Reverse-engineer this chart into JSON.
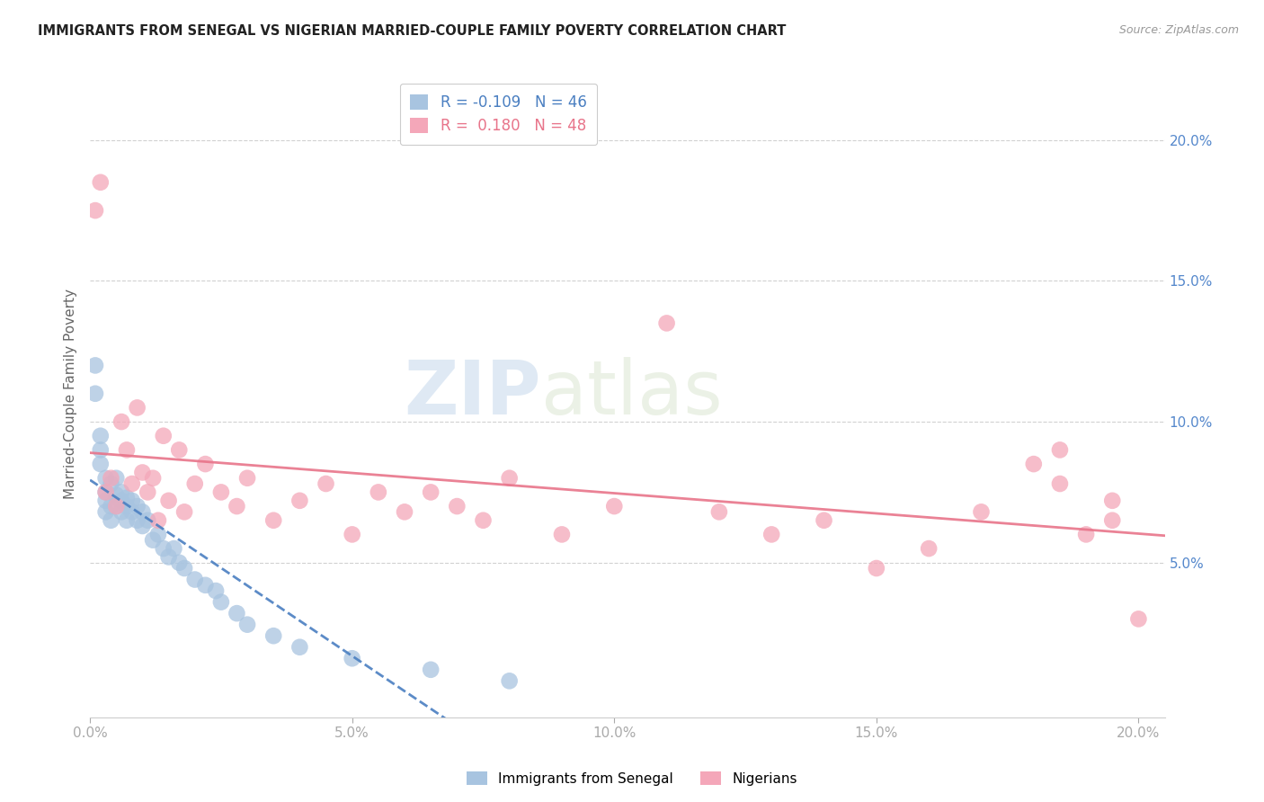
{
  "title": "IMMIGRANTS FROM SENEGAL VS NIGERIAN MARRIED-COUPLE FAMILY POVERTY CORRELATION CHART",
  "source": "Source: ZipAtlas.com",
  "ylabel": "Married-Couple Family Poverty",
  "xlim": [
    0.0,
    0.205
  ],
  "ylim": [
    -0.005,
    0.225
  ],
  "xticks": [
    0.0,
    0.05,
    0.1,
    0.15,
    0.2
  ],
  "yticks": [
    0.05,
    0.1,
    0.15,
    0.2
  ],
  "r_senegal": -0.109,
  "n_senegal": 46,
  "r_nigerian": 0.18,
  "n_nigerian": 48,
  "senegal_color": "#a8c4e0",
  "nigerian_color": "#f4a7b9",
  "trend_senegal_color": "#4a7fc1",
  "trend_nigerian_color": "#e8748a",
  "watermark_zip": "ZIP",
  "watermark_atlas": "atlas",
  "legend_label_senegal": "Immigrants from Senegal",
  "legend_label_nigerian": "Nigerians",
  "senegal_x": [
    0.001,
    0.001,
    0.002,
    0.002,
    0.002,
    0.003,
    0.003,
    0.003,
    0.003,
    0.004,
    0.004,
    0.004,
    0.005,
    0.005,
    0.005,
    0.006,
    0.006,
    0.006,
    0.007,
    0.007,
    0.007,
    0.008,
    0.008,
    0.009,
    0.009,
    0.01,
    0.01,
    0.011,
    0.012,
    0.013,
    0.014,
    0.015,
    0.016,
    0.017,
    0.018,
    0.02,
    0.022,
    0.024,
    0.025,
    0.028,
    0.03,
    0.035,
    0.04,
    0.05,
    0.065,
    0.08
  ],
  "senegal_y": [
    0.12,
    0.11,
    0.09,
    0.085,
    0.095,
    0.075,
    0.08,
    0.072,
    0.068,
    0.078,
    0.07,
    0.065,
    0.074,
    0.07,
    0.08,
    0.072,
    0.068,
    0.075,
    0.07,
    0.065,
    0.073,
    0.068,
    0.072,
    0.065,
    0.07,
    0.068,
    0.063,
    0.065,
    0.058,
    0.06,
    0.055,
    0.052,
    0.055,
    0.05,
    0.048,
    0.044,
    0.042,
    0.04,
    0.036,
    0.032,
    0.028,
    0.024,
    0.02,
    0.016,
    0.012,
    0.008
  ],
  "nigerian_x": [
    0.001,
    0.002,
    0.003,
    0.004,
    0.005,
    0.006,
    0.007,
    0.008,
    0.009,
    0.01,
    0.011,
    0.012,
    0.013,
    0.014,
    0.015,
    0.017,
    0.018,
    0.02,
    0.022,
    0.025,
    0.028,
    0.03,
    0.035,
    0.04,
    0.045,
    0.05,
    0.055,
    0.06,
    0.065,
    0.07,
    0.075,
    0.08,
    0.09,
    0.1,
    0.11,
    0.12,
    0.13,
    0.14,
    0.15,
    0.16,
    0.17,
    0.18,
    0.185,
    0.19,
    0.195,
    0.195,
    0.185,
    0.2
  ],
  "nigerian_y": [
    0.175,
    0.185,
    0.075,
    0.08,
    0.07,
    0.1,
    0.09,
    0.078,
    0.105,
    0.082,
    0.075,
    0.08,
    0.065,
    0.095,
    0.072,
    0.09,
    0.068,
    0.078,
    0.085,
    0.075,
    0.07,
    0.08,
    0.065,
    0.072,
    0.078,
    0.06,
    0.075,
    0.068,
    0.075,
    0.07,
    0.065,
    0.08,
    0.06,
    0.07,
    0.135,
    0.068,
    0.06,
    0.065,
    0.048,
    0.055,
    0.068,
    0.085,
    0.09,
    0.06,
    0.065,
    0.072,
    0.078,
    0.03
  ]
}
